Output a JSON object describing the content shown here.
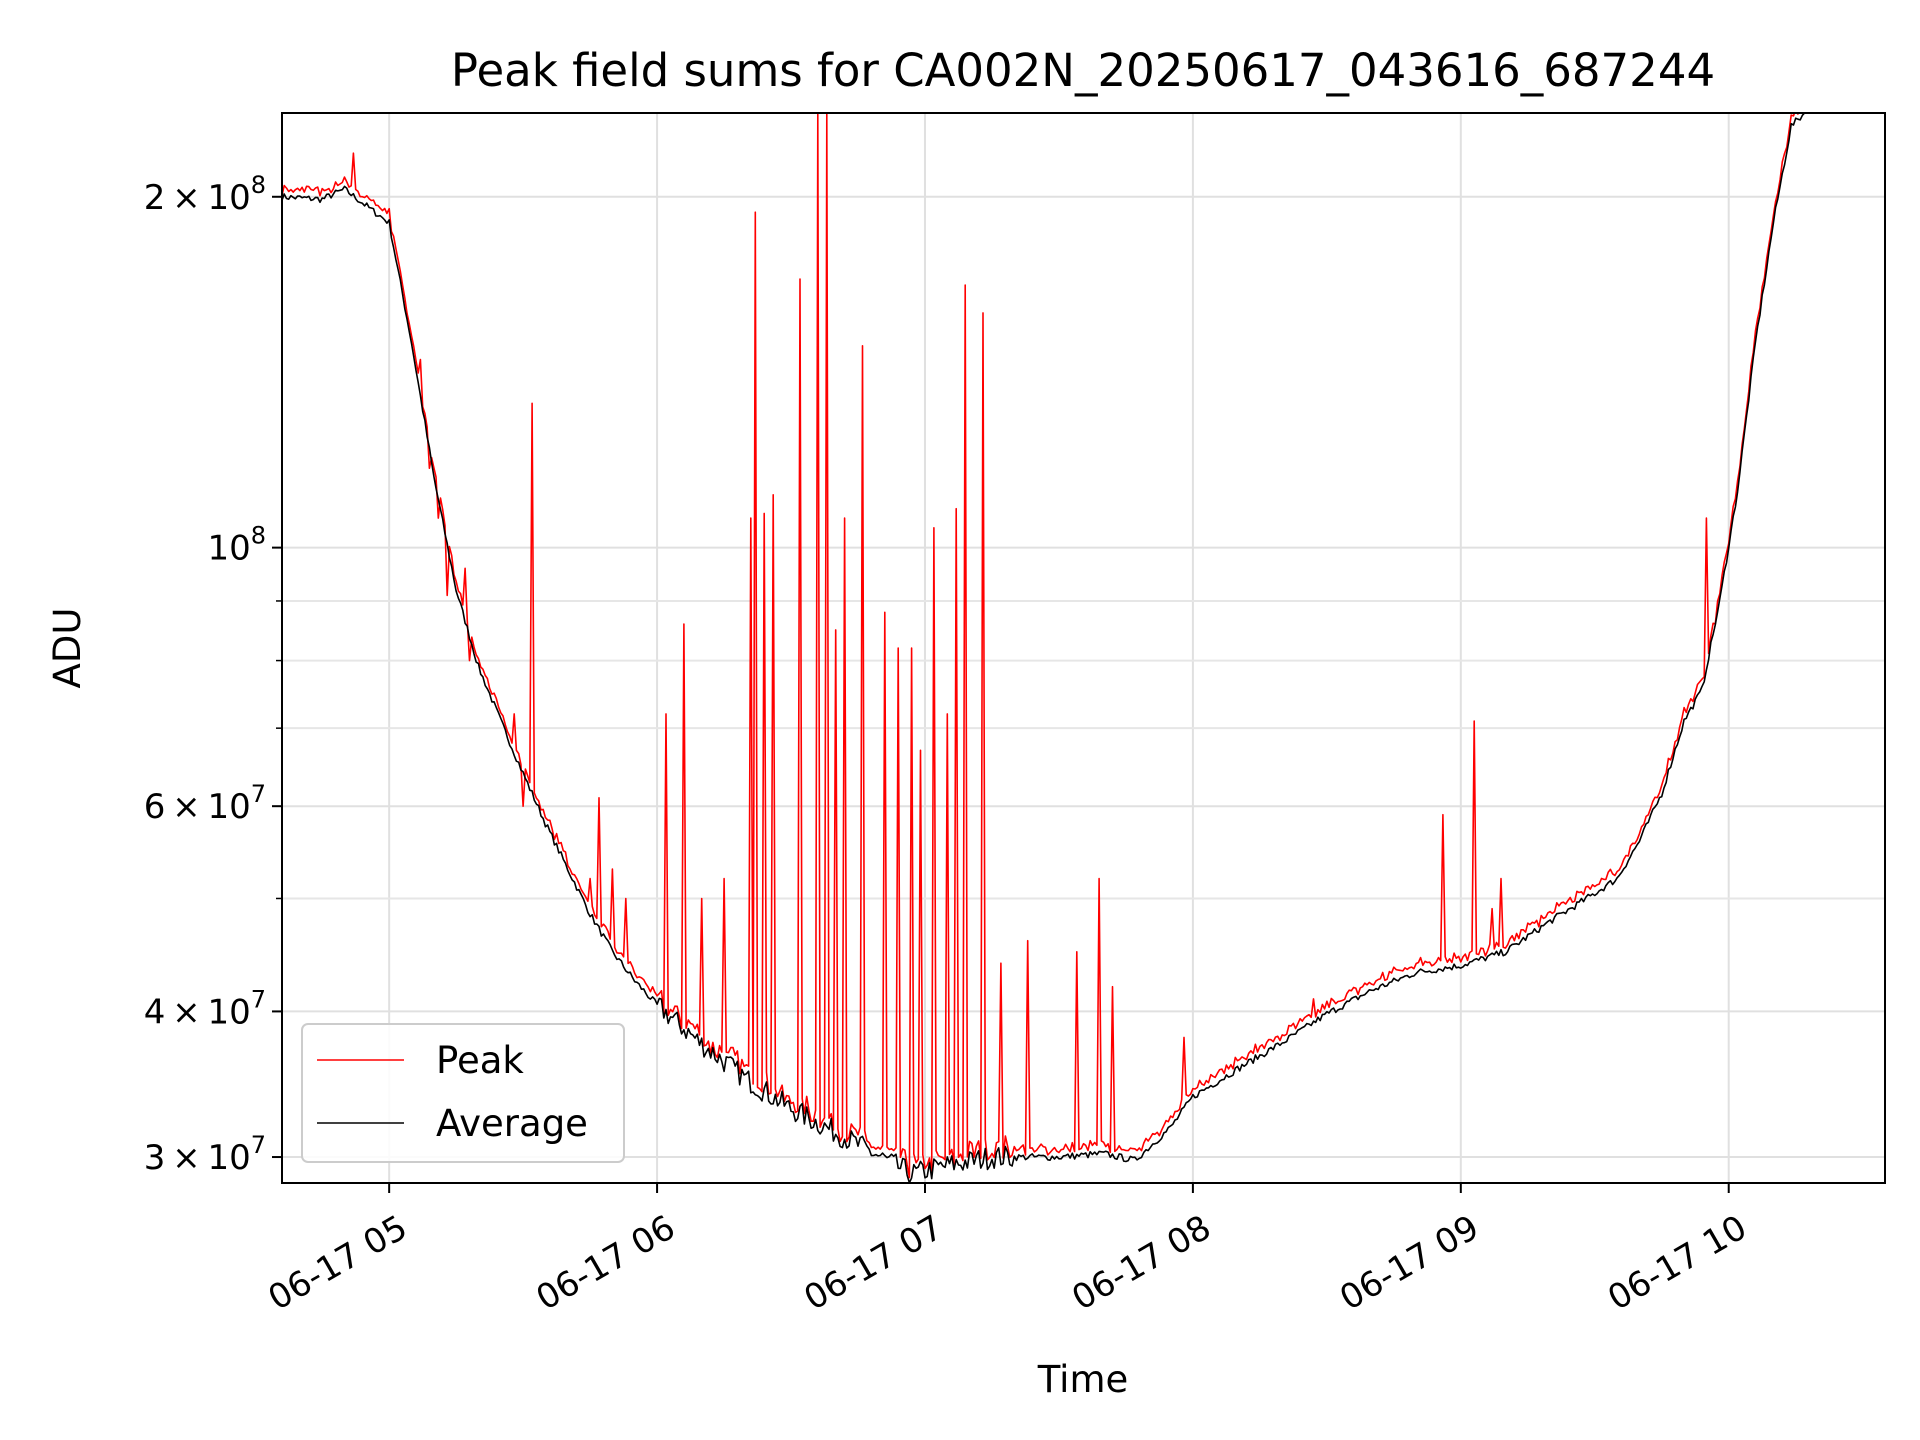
{
  "chart_data": {
    "type": "line",
    "title": "Peak field sums for CA002N_20250617_043616_687244",
    "xlabel": "Time",
    "ylabel": "ADU",
    "x_unit": "time (2025-06-17, HH:MM)",
    "xlim": [
      "04:36",
      "10:35"
    ],
    "ylim": [
      28500000,
      236000000
    ],
    "yscale": "log",
    "grid": true,
    "legend_position": "lower-left",
    "x_ticks": [
      {
        "time": "05:00",
        "label": "06-17 05"
      },
      {
        "time": "06:00",
        "label": "06-17 06"
      },
      {
        "time": "07:00",
        "label": "06-17 07"
      },
      {
        "time": "08:00",
        "label": "06-17 08"
      },
      {
        "time": "09:00",
        "label": "06-17 09"
      },
      {
        "time": "10:00",
        "label": "06-17 10"
      }
    ],
    "y_major_ticks": [
      {
        "value": 30000000,
        "base": "3",
        "exp": "7"
      },
      {
        "value": 40000000,
        "base": "4",
        "exp": "7"
      },
      {
        "value": 60000000,
        "base": "6",
        "exp": "7"
      },
      {
        "value": 100000000,
        "base": "",
        "exp": "8"
      },
      {
        "value": 200000000,
        "base": "2",
        "exp": "8"
      }
    ],
    "y_minor_grid": [
      50000000,
      70000000,
      80000000,
      90000000
    ],
    "series": [
      {
        "name": "Average",
        "color": "#000000",
        "points": [
          [
            "04:36",
            200000000
          ],
          [
            "04:45",
            199000000
          ],
          [
            "04:50",
            203000000
          ],
          [
            "04:56",
            195000000
          ],
          [
            "05:00",
            190000000
          ],
          [
            "05:05",
            150000000
          ],
          [
            "05:10",
            115000000
          ],
          [
            "05:15",
            92000000
          ],
          [
            "05:20",
            79000000
          ],
          [
            "05:25",
            71000000
          ],
          [
            "05:30",
            64000000
          ],
          [
            "05:35",
            58000000
          ],
          [
            "05:40",
            53000000
          ],
          [
            "05:45",
            48500000
          ],
          [
            "05:50",
            45000000
          ],
          [
            "05:55",
            42500000
          ],
          [
            "06:00",
            40500000
          ],
          [
            "06:10",
            37500000
          ],
          [
            "06:20",
            35000000
          ],
          [
            "06:30",
            33000000
          ],
          [
            "06:40",
            31500000
          ],
          [
            "06:50",
            30000000
          ],
          [
            "06:57",
            29000000
          ],
          [
            "07:05",
            29500000
          ],
          [
            "07:15",
            30000000
          ],
          [
            "07:30",
            30000000
          ],
          [
            "07:40",
            30200000
          ],
          [
            "07:47",
            29800000
          ],
          [
            "07:55",
            31800000
          ],
          [
            "08:00",
            33800000
          ],
          [
            "08:10",
            35700000
          ],
          [
            "08:20",
            37600000
          ],
          [
            "08:30",
            39800000
          ],
          [
            "08:40",
            41700000
          ],
          [
            "08:50",
            43200000
          ],
          [
            "09:00",
            43800000
          ],
          [
            "09:10",
            45000000
          ],
          [
            "09:20",
            47800000
          ],
          [
            "09:30",
            50500000
          ],
          [
            "09:35",
            52000000
          ],
          [
            "09:40",
            56000000
          ],
          [
            "09:45",
            61500000
          ],
          [
            "09:50",
            71000000
          ],
          [
            "09:54",
            75500000
          ],
          [
            "09:58",
            90000000
          ],
          [
            "10:02",
            112000000
          ],
          [
            "10:06",
            150000000
          ],
          [
            "10:10",
            190000000
          ],
          [
            "10:14",
            230000000
          ],
          [
            "10:17",
            236000000
          ]
        ]
      },
      {
        "name": "Peak",
        "color": "#ff0000",
        "spikes": [
          [
            "04:52",
            218000000
          ],
          [
            "05:07",
            145000000
          ],
          [
            "05:09",
            117000000
          ],
          [
            "05:11",
            106000000
          ],
          [
            "05:13",
            91000000
          ],
          [
            "05:17",
            96000000
          ],
          [
            "05:18",
            80000000
          ],
          [
            "05:28",
            72000000
          ],
          [
            "05:30",
            60000000
          ],
          [
            "05:32",
            133000000
          ],
          [
            "05:42",
            52000000
          ],
          [
            "05:45",
            52000000
          ],
          [
            "05:47",
            61000000
          ],
          [
            "05:50",
            53000000
          ],
          [
            "05:53",
            50000000
          ],
          [
            "06:02",
            72000000
          ],
          [
            "06:06",
            86000000
          ],
          [
            "06:10",
            50000000
          ],
          [
            "06:15",
            52000000
          ],
          [
            "06:21",
            106000000
          ],
          [
            "06:22",
            194000000
          ],
          [
            "06:24",
            107000000
          ],
          [
            "06:26",
            111000000
          ],
          [
            "06:32",
            170000000
          ],
          [
            "06:36",
            236000000
          ],
          [
            "06:38",
            236000000
          ],
          [
            "06:40",
            85000000
          ],
          [
            "06:42",
            106000000
          ],
          [
            "06:46",
            149000000
          ],
          [
            "06:51",
            88000000
          ],
          [
            "06:54",
            82000000
          ],
          [
            "06:57",
            82000000
          ],
          [
            "06:59",
            67000000
          ],
          [
            "07:02",
            104000000
          ],
          [
            "07:05",
            72000000
          ],
          [
            "07:07",
            108000000
          ],
          [
            "07:09",
            168000000
          ],
          [
            "07:13",
            159000000
          ],
          [
            "07:17",
            44000000
          ],
          [
            "07:23",
            46000000
          ],
          [
            "07:34",
            45000000
          ],
          [
            "07:39",
            52000000
          ],
          [
            "07:42",
            42000000
          ],
          [
            "07:58",
            38000000
          ],
          [
            "08:27",
            41000000
          ],
          [
            "08:38",
            42000000
          ],
          [
            "08:56",
            59000000
          ],
          [
            "09:03",
            71000000
          ],
          [
            "09:07",
            49000000
          ],
          [
            "09:09",
            52000000
          ],
          [
            "09:12",
            46000000
          ],
          [
            "09:55",
            106000000
          ],
          [
            "09:57",
            86000000
          ]
        ]
      }
    ]
  }
}
